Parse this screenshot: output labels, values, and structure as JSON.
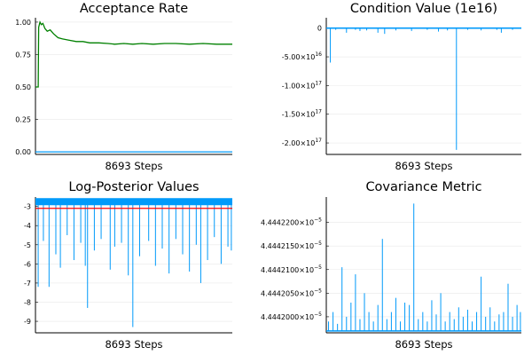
{
  "colors": {
    "blue": "#009AFA",
    "green": "#008000",
    "red": "#FF0000",
    "axis": "#000000"
  },
  "chart_data": [
    {
      "id": "acceptance",
      "type": "line",
      "title": "Acceptance Rate",
      "xlabel": "8693 Steps",
      "xlim": [
        0,
        8693
      ],
      "ylim": [
        -0.02,
        1.02
      ],
      "yticks": [
        0.0,
        0.25,
        0.5,
        0.75,
        1.0
      ],
      "ytick_labels": [
        "0.00",
        "0.25",
        "0.50",
        "0.75",
        "1.00"
      ],
      "grid": true,
      "legend": "none",
      "series": [
        {
          "color": "#008000",
          "x": [
            0,
            120,
            140,
            200,
            260,
            330,
            420,
            520,
            650,
            800,
            1000,
            1200,
            1500,
            1800,
            2100,
            2400,
            2800,
            3200,
            3500,
            3900,
            4300,
            4700,
            5200,
            5700,
            6200,
            6800,
            7400,
            8000,
            8693
          ],
          "values": [
            0.5,
            0.5,
            0.96,
            1.0,
            0.98,
            0.99,
            0.95,
            0.93,
            0.94,
            0.91,
            0.88,
            0.87,
            0.86,
            0.85,
            0.85,
            0.84,
            0.84,
            0.835,
            0.83,
            0.835,
            0.83,
            0.835,
            0.83,
            0.835,
            0.835,
            0.83,
            0.835,
            0.83,
            0.83
          ]
        },
        {
          "color": "#009AFA",
          "x": [
            0,
            8693
          ],
          "values": [
            0.0,
            0.0
          ]
        }
      ]
    },
    {
      "id": "condition",
      "type": "line",
      "title": "Condition Value (1e16)",
      "xlabel": "8693 Steps",
      "xlim": [
        0,
        8693
      ],
      "ylim": [
        -2.2e+17,
        1.5e+16
      ],
      "yticks": [
        0,
        -5e+16,
        -1e+17,
        -1.5e+17,
        -2e+17
      ],
      "ytick_labels": [
        {
          "base": "0",
          "exp": ""
        },
        {
          "base": "-5.00×10",
          "exp": "16"
        },
        {
          "base": "-1.00×10",
          "exp": "17"
        },
        {
          "base": "-1.50×10",
          "exp": "17"
        },
        {
          "base": "-2.00×10",
          "exp": "17"
        }
      ],
      "grid": true,
      "legend": "none",
      "series": [
        {
          "color": "#009AFA",
          "baseline": 0,
          "spikes": [
            [
              180,
              -6e+16
            ],
            [
              420,
              -3000000000000000.0
            ],
            [
              900,
              -8000000000000000.0
            ],
            [
              1300,
              -3000000000000000.0
            ],
            [
              1500,
              -5000000000000000.0
            ],
            [
              1800,
              -4000000000000000.0
            ],
            [
              2300,
              -8000000000000000.0
            ],
            [
              2600,
              -1e+16
            ],
            [
              3100,
              -4000000000000000.0
            ],
            [
              3800,
              -5000000000000000.0
            ],
            [
              4500,
              -3000000000000000.0
            ],
            [
              5000,
              -6000000000000000.0
            ],
            [
              5400,
              -4000000000000000.0
            ],
            [
              5800,
              -2.12e+17
            ],
            [
              6300,
              -3000000000000000.0
            ],
            [
              6900,
              -4000000000000000.0
            ],
            [
              7600,
              -3000000000000000.0
            ],
            [
              7800,
              -8000000000000000.0
            ],
            [
              8300,
              -3000000000000000.0
            ]
          ]
        }
      ]
    },
    {
      "id": "logpost",
      "type": "line",
      "title": "Log-Posterior Values",
      "xlabel": "8693 Steps",
      "xlim": [
        0,
        8693
      ],
      "ylim": [
        -9.6,
        -2.6
      ],
      "yticks": [
        -3,
        -4,
        -5,
        -6,
        -7,
        -8,
        -9
      ],
      "ytick_labels": [
        "-3",
        "-4",
        "-5",
        "-6",
        "-7",
        "-8",
        "-9"
      ],
      "grid": true,
      "legend": "none",
      "hline": {
        "value": -3.1,
        "color": "#FF0000"
      },
      "series": [
        {
          "color": "#009AFA",
          "top": -2.75,
          "spikes": [
            [
              120,
              -7.2
            ],
            [
              350,
              -4.8
            ],
            [
              600,
              -7.2
            ],
            [
              900,
              -5.5
            ],
            [
              1100,
              -6.2
            ],
            [
              1400,
              -4.5
            ],
            [
              1700,
              -5.8
            ],
            [
              2000,
              -4.9
            ],
            [
              2200,
              -6.1
            ],
            [
              2300,
              -8.3
            ],
            [
              2600,
              -5.3
            ],
            [
              2900,
              -4.7
            ],
            [
              3300,
              -6.3
            ],
            [
              3500,
              -5.1
            ],
            [
              3800,
              -4.9
            ],
            [
              4100,
              -6.6
            ],
            [
              4300,
              -9.3
            ],
            [
              4600,
              -5.6
            ],
            [
              5000,
              -4.8
            ],
            [
              5300,
              -6.1
            ],
            [
              5600,
              -5.2
            ],
            [
              5900,
              -6.5
            ],
            [
              6200,
              -4.7
            ],
            [
              6500,
              -5.5
            ],
            [
              6800,
              -6.4
            ],
            [
              7100,
              -5.0
            ],
            [
              7300,
              -7.0
            ],
            [
              7600,
              -5.8
            ],
            [
              7900,
              -4.6
            ],
            [
              8200,
              -6.0
            ],
            [
              8500,
              -5.1
            ],
            [
              8650,
              -5.3
            ]
          ]
        }
      ]
    },
    {
      "id": "covariance",
      "type": "line",
      "title": "Covariance Metric",
      "xlabel": "8693 Steps",
      "xlim": [
        0,
        8693
      ],
      "ylim": [
        4.4441966e-05,
        4.444225e-05
      ],
      "yticks": [
        4.4442e-05,
        4.444205e-05,
        4.44421e-05,
        4.444215e-05,
        4.44422e-05
      ],
      "ytick_labels": [
        {
          "base": "4.4442000×10",
          "exp": "−5"
        },
        {
          "base": "4.4442050×10",
          "exp": "−5"
        },
        {
          "base": "4.4442100×10",
          "exp": "−5"
        },
        {
          "base": "4.4442150×10",
          "exp": "−5"
        },
        {
          "base": "4.4442200×10",
          "exp": "−5"
        }
      ],
      "grid": true,
      "legend": "none",
      "series": [
        {
          "color": "#009AFA",
          "baseline": 4.444197e-05,
          "spikes": [
            [
              100,
              4.444199e-05
            ],
            [
              300,
              4.444201e-05
            ],
            [
              500,
              4.4441985e-05
            ],
            [
              700,
              4.4442105e-05
            ],
            [
              900,
              4.4442e-05
            ],
            [
              1100,
              4.444203e-05
            ],
            [
              1300,
              4.444209e-05
            ],
            [
              1500,
              4.4441995e-05
            ],
            [
              1700,
              4.444205e-05
            ],
            [
              1900,
              4.444201e-05
            ],
            [
              2100,
              4.444199e-05
            ],
            [
              2300,
              4.4442025e-05
            ],
            [
              2500,
              4.4442165e-05
            ],
            [
              2700,
              4.4441995e-05
            ],
            [
              2900,
              4.444201e-05
            ],
            [
              3100,
              4.444204e-05
            ],
            [
              3300,
              4.444199e-05
            ],
            [
              3500,
              4.444203e-05
            ],
            [
              3700,
              4.4442025e-05
            ],
            [
              3900,
              4.444224e-05
            ],
            [
              4100,
              4.4441995e-05
            ],
            [
              4300,
              4.444201e-05
            ],
            [
              4500,
              4.444199e-05
            ],
            [
              4700,
              4.4442035e-05
            ],
            [
              4900,
              4.4442005e-05
            ],
            [
              5100,
              4.444205e-05
            ],
            [
              5300,
              4.444199e-05
            ],
            [
              5500,
              4.444201e-05
            ],
            [
              5700,
              4.4441995e-05
            ],
            [
              5900,
              4.444202e-05
            ],
            [
              6100,
              4.4442e-05
            ],
            [
              6300,
              4.4442015e-05
            ],
            [
              6500,
              4.444199e-05
            ],
            [
              6700,
              4.444201e-05
            ],
            [
              6900,
              4.4442085e-05
            ],
            [
              7100,
              4.4442e-05
            ],
            [
              7300,
              4.444202e-05
            ],
            [
              7500,
              4.444199e-05
            ],
            [
              7700,
              4.4442005e-05
            ],
            [
              7900,
              4.444201e-05
            ],
            [
              8100,
              4.444207e-05
            ],
            [
              8300,
              4.4442e-05
            ],
            [
              8500,
              4.4442025e-05
            ],
            [
              8650,
              4.444201e-05
            ]
          ]
        }
      ]
    }
  ]
}
